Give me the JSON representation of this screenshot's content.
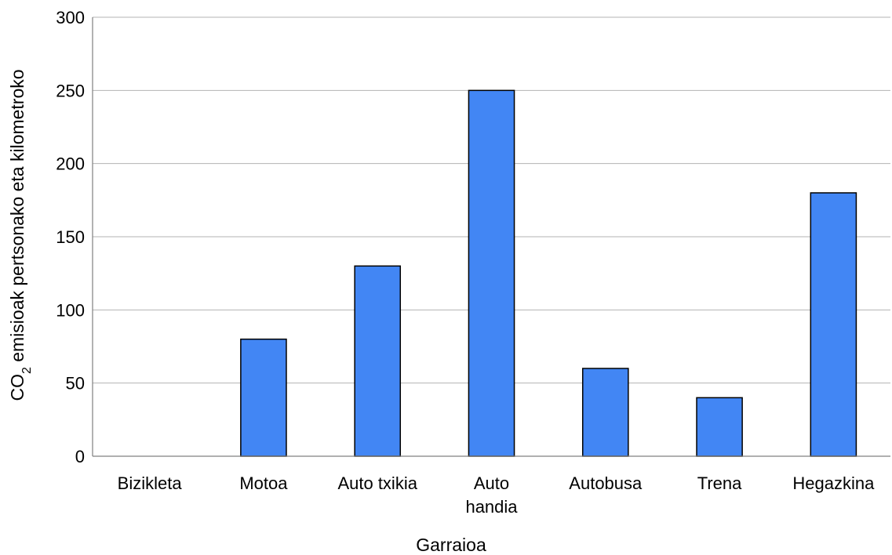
{
  "chart_data": {
    "type": "bar",
    "categories": [
      [
        "Bizikleta"
      ],
      [
        "Motoa"
      ],
      [
        "Auto txikia"
      ],
      [
        "Auto",
        "handia"
      ],
      [
        "Autobusa"
      ],
      [
        "Trena"
      ],
      [
        "Hegazkina"
      ]
    ],
    "series": [
      {
        "values": [
          0,
          80,
          130,
          250,
          60,
          40,
          180
        ],
        "color": "#4286f4"
      }
    ],
    "xlabel": "Garraioa",
    "ylabel": {
      "prefix": "CO",
      "subscript": "2",
      "suffix": " emisioak pertsonako eta kilometroko"
    },
    "ylim": [
      0,
      300
    ],
    "yticks": [
      0,
      50,
      100,
      150,
      200,
      250,
      300
    ],
    "grid": true,
    "legend": "none"
  }
}
